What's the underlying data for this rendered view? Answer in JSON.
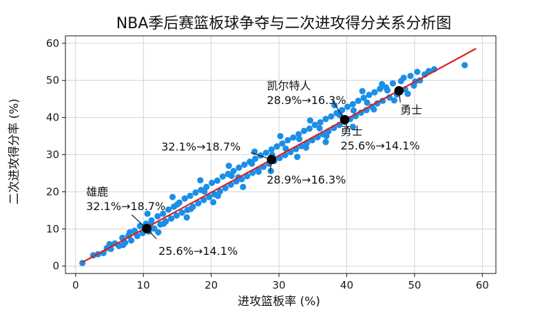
{
  "chart_data": {
    "type": "scatter",
    "title": "NBA季后赛篮板球争夺与二次进攻得分关系分析图",
    "xlabel": "进攻篮板率 (%)",
    "ylabel": "二次进攻得分率 (%)",
    "xlim": [
      -1.5,
      62
    ],
    "ylim": [
      -2,
      62
    ],
    "x_ticks": [
      0,
      10,
      20,
      30,
      40,
      50,
      60
    ],
    "y_ticks": [
      0,
      10,
      20,
      30,
      40,
      50,
      60
    ],
    "grid": true,
    "point_color": "#1a8fe8",
    "line_color": "#dd1f1f",
    "highlight_color": "#000000",
    "fit_line": [
      [
        1,
        1
      ],
      [
        59,
        58.5
      ]
    ],
    "series": [
      {
        "values": [
          [
            1.0,
            0.8
          ],
          [
            2.6,
            2.9
          ],
          [
            3.3,
            3.2
          ],
          [
            4.1,
            3.5
          ],
          [
            4.6,
            4.8
          ],
          [
            5.2,
            4.6
          ],
          [
            5.8,
            6.1
          ],
          [
            6.4,
            5.4
          ],
          [
            6.9,
            7.6
          ],
          [
            7.3,
            6.3
          ],
          [
            7.8,
            8.2
          ],
          [
            8.2,
            6.9
          ],
          [
            8.7,
            9.5
          ],
          [
            9.1,
            8.1
          ],
          [
            9.5,
            10.8
          ],
          [
            9.9,
            8.9
          ],
          [
            10.4,
            11.4
          ],
          [
            10.8,
            9.3
          ],
          [
            11.2,
            12.3
          ],
          [
            11.6,
            10.1
          ],
          [
            12.1,
            13.4
          ],
          [
            12.5,
            11.2
          ],
          [
            12.9,
            14.1
          ],
          [
            13.3,
            12.0
          ],
          [
            13.7,
            15.2
          ],
          [
            14.1,
            12.8
          ],
          [
            14.5,
            16.0
          ],
          [
            14.9,
            13.6
          ],
          [
            15.3,
            17.1
          ],
          [
            15.7,
            14.4
          ],
          [
            16.1,
            18.2
          ],
          [
            16.5,
            15.1
          ],
          [
            16.9,
            18.9
          ],
          [
            17.3,
            16.0
          ],
          [
            17.7,
            19.8
          ],
          [
            18.1,
            16.9
          ],
          [
            18.5,
            20.5
          ],
          [
            18.9,
            17.8
          ],
          [
            19.3,
            21.3
          ],
          [
            19.7,
            18.6
          ],
          [
            20.1,
            22.4
          ],
          [
            20.5,
            19.3
          ],
          [
            20.9,
            23.0
          ],
          [
            21.3,
            20.1
          ],
          [
            21.7,
            24.1
          ],
          [
            22.1,
            21.0
          ],
          [
            22.5,
            24.8
          ],
          [
            22.9,
            21.9
          ],
          [
            23.3,
            25.6
          ],
          [
            23.7,
            22.8
          ],
          [
            24.1,
            26.5
          ],
          [
            24.5,
            23.4
          ],
          [
            24.9,
            27.3
          ],
          [
            25.3,
            24.2
          ],
          [
            25.7,
            28.1
          ],
          [
            26.1,
            25.1
          ],
          [
            26.5,
            28.9
          ],
          [
            26.9,
            26.0
          ],
          [
            27.3,
            29.8
          ],
          [
            27.7,
            26.7
          ],
          [
            28.1,
            30.5
          ],
          [
            28.5,
            27.6
          ],
          [
            28.9,
            31.4
          ],
          [
            29.3,
            28.3
          ],
          [
            29.7,
            32.2
          ],
          [
            30.1,
            29.1
          ],
          [
            30.5,
            33.0
          ],
          [
            30.9,
            29.9
          ],
          [
            31.3,
            33.9
          ],
          [
            31.7,
            30.7
          ],
          [
            32.1,
            34.6
          ],
          [
            32.5,
            31.5
          ],
          [
            32.9,
            35.5
          ],
          [
            33.3,
            32.3
          ],
          [
            33.7,
            36.4
          ],
          [
            34.1,
            33.1
          ],
          [
            34.5,
            37.0
          ],
          [
            34.9,
            33.9
          ],
          [
            35.3,
            38.0
          ],
          [
            35.7,
            34.7
          ],
          [
            36.1,
            38.7
          ],
          [
            36.5,
            35.5
          ],
          [
            36.9,
            39.6
          ],
          [
            37.3,
            36.3
          ],
          [
            37.7,
            40.3
          ],
          [
            38.1,
            37.2
          ],
          [
            38.5,
            41.2
          ],
          [
            38.9,
            38.0
          ],
          [
            39.3,
            42.0
          ],
          [
            39.7,
            38.8
          ],
          [
            40.1,
            42.9
          ],
          [
            40.5,
            39.6
          ],
          [
            40.9,
            43.6
          ],
          [
            41.3,
            40.4
          ],
          [
            41.7,
            44.5
          ],
          [
            42.1,
            41.3
          ],
          [
            42.5,
            45.3
          ],
          [
            42.9,
            42.0
          ],
          [
            43.3,
            46.1
          ],
          [
            43.7,
            42.9
          ],
          [
            44.1,
            46.8
          ],
          [
            44.5,
            43.8
          ],
          [
            44.9,
            47.7
          ],
          [
            45.3,
            44.5
          ],
          [
            45.8,
            48.1
          ],
          [
            46.3,
            45.4
          ],
          [
            46.8,
            49.2
          ],
          [
            47.4,
            46.2
          ],
          [
            48.0,
            49.8
          ],
          [
            48.6,
            47.6
          ],
          [
            49.4,
            51.2
          ],
          [
            49.9,
            48.6
          ],
          [
            50.4,
            52.3
          ],
          [
            50.8,
            50.0
          ],
          [
            51.5,
            51.6
          ],
          [
            52.1,
            52.5
          ],
          [
            52.9,
            53.0
          ],
          [
            57.4,
            54.1
          ],
          [
            5.0,
            5.9
          ],
          [
            7.0,
            5.7
          ],
          [
            8.0,
            9.1
          ],
          [
            11.0,
            10.9
          ],
          [
            13.0,
            11.4
          ],
          [
            15.0,
            16.6
          ],
          [
            17.0,
            15.4
          ],
          [
            19.0,
            20.1
          ],
          [
            21.0,
            18.9
          ],
          [
            23.0,
            24.3
          ],
          [
            24.0,
            23.9
          ],
          [
            26.0,
            27.6
          ],
          [
            27.0,
            25.4
          ],
          [
            29.0,
            29.9
          ],
          [
            31.0,
            31.6
          ],
          [
            33.0,
            34.2
          ],
          [
            34.0,
            31.9
          ],
          [
            36.0,
            37.1
          ],
          [
            37.0,
            35.0
          ],
          [
            39.0,
            40.6
          ],
          [
            41.0,
            41.9
          ],
          [
            43.0,
            44.0
          ],
          [
            44.0,
            42.2
          ],
          [
            46.0,
            47.3
          ],
          [
            47.0,
            44.6
          ],
          [
            48.4,
            50.7
          ],
          [
            49.0,
            46.4
          ],
          [
            50.1,
            49.7
          ],
          [
            45.2,
            49.0
          ],
          [
            42.3,
            47.1
          ],
          [
            38.2,
            43.3
          ],
          [
            34.6,
            39.2
          ],
          [
            30.2,
            35.0
          ],
          [
            26.4,
            30.8
          ],
          [
            22.6,
            27.0
          ],
          [
            18.4,
            23.1
          ],
          [
            14.3,
            18.6
          ],
          [
            10.6,
            14.1
          ],
          [
            20.3,
            17.2
          ],
          [
            24.7,
            21.3
          ],
          [
            28.8,
            25.6
          ],
          [
            32.7,
            29.4
          ],
          [
            36.9,
            33.4
          ],
          [
            40.9,
            37.5
          ],
          [
            16.4,
            13.1
          ],
          [
            12.2,
            9.1
          ]
        ]
      }
    ],
    "highlights": [
      {
        "x": 10.5,
        "y": 10.1
      },
      {
        "x": 28.9,
        "y": 28.7
      },
      {
        "x": 39.7,
        "y": 39.4
      },
      {
        "x": 47.7,
        "y": 47.2
      }
    ],
    "annotations": [
      {
        "lines": [
          "雄鹿",
          "32.1%→18.7%"
        ],
        "target_index": 0
      },
      {
        "lines": [
          "25.6%→14.1%"
        ],
        "target_index": 0
      },
      {
        "lines": [
          "32.1%→18.7%"
        ],
        "target_index": 1
      },
      {
        "lines": [
          "28.9%→16.3%"
        ],
        "target_index": 1
      },
      {
        "lines": [
          "凯尔特人",
          "28.9%→16.3%"
        ],
        "target_index": 2
      },
      {
        "lines": [
          "勇士",
          "25.6%→14.1%"
        ],
        "target_index": 2
      },
      {
        "lines": [
          "勇士"
        ],
        "target_index": 3
      }
    ]
  }
}
